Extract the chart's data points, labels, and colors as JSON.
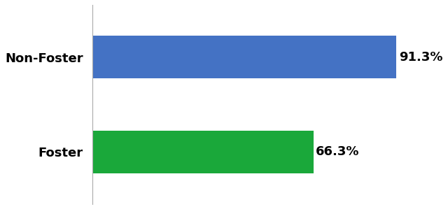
{
  "categories": [
    "Foster",
    "Non-Foster"
  ],
  "values": [
    66.3,
    91.3
  ],
  "bar_colors": [
    "#1AA83A",
    "#4472C4"
  ],
  "label_texts": [
    "66.3%",
    "91.3%"
  ],
  "xlim": [
    0,
    105
  ],
  "bar_height": 0.45,
  "background_color": "#ffffff",
  "label_fontsize": 13,
  "tick_fontsize": 13,
  "label_fontweight": "bold",
  "tick_fontweight": "bold",
  "ylim": [
    -0.55,
    1.55
  ]
}
